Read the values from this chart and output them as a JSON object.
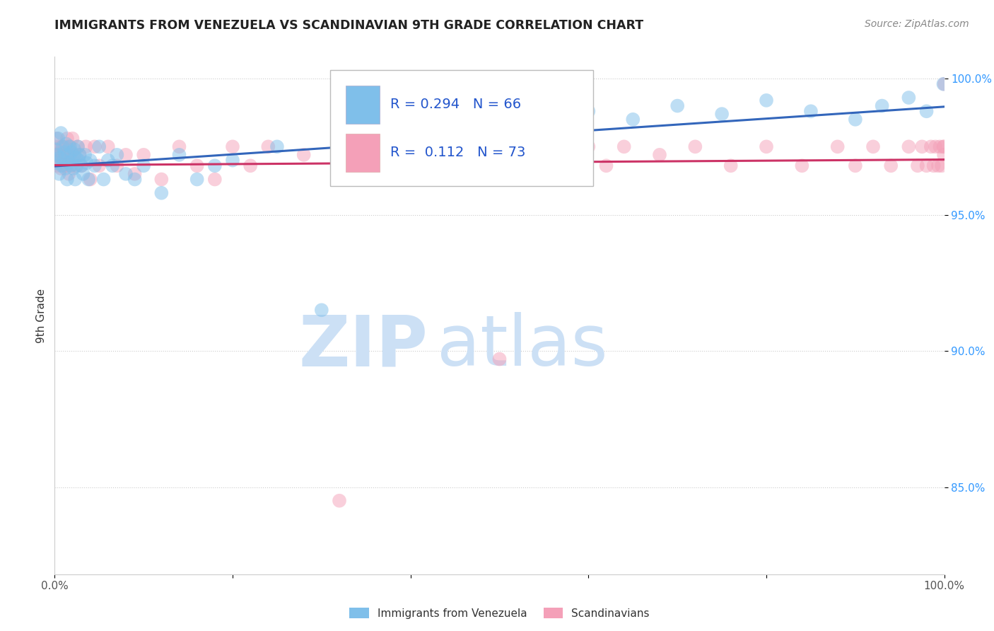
{
  "title": "IMMIGRANTS FROM VENEZUELA VS SCANDINAVIAN 9TH GRADE CORRELATION CHART",
  "source": "Source: ZipAtlas.com",
  "ylabel_label": "9th Grade",
  "y_tick_labels": [
    "100.0%",
    "95.0%",
    "90.0%",
    "85.0%"
  ],
  "y_tick_values": [
    1.0,
    0.95,
    0.9,
    0.85
  ],
  "x_range": [
    0.0,
    1.0
  ],
  "y_range": [
    0.818,
    1.008
  ],
  "blue_label": "Immigrants from Venezuela",
  "pink_label": "Scandinavians",
  "blue_color": "#7fbfea",
  "pink_color": "#f4a0b8",
  "trend_blue_color": "#3366bb",
  "trend_pink_color": "#cc3366",
  "legend_text_color": "#2255cc",
  "watermark_zip": "ZIP",
  "watermark_atlas": "atlas",
  "watermark_color": "#cce0f5",
  "grid_color": "#cccccc",
  "blue_points_x": [
    0.001,
    0.002,
    0.003,
    0.004,
    0.005,
    0.006,
    0.007,
    0.008,
    0.009,
    0.01,
    0.011,
    0.012,
    0.013,
    0.014,
    0.015,
    0.016,
    0.017,
    0.018,
    0.019,
    0.02,
    0.021,
    0.022,
    0.023,
    0.024,
    0.025,
    0.026,
    0.027,
    0.028,
    0.03,
    0.032,
    0.034,
    0.036,
    0.038,
    0.04,
    0.045,
    0.05,
    0.055,
    0.06,
    0.065,
    0.07,
    0.08,
    0.09,
    0.1,
    0.12,
    0.14,
    0.16,
    0.18,
    0.2,
    0.25,
    0.3,
    0.35,
    0.4,
    0.45,
    0.5,
    0.55,
    0.6,
    0.65,
    0.7,
    0.75,
    0.8,
    0.85,
    0.9,
    0.93,
    0.96,
    0.98,
    0.999
  ],
  "blue_points_y": [
    0.974,
    0.969,
    0.972,
    0.978,
    0.965,
    0.971,
    0.98,
    0.968,
    0.975,
    0.97,
    0.973,
    0.967,
    0.976,
    0.963,
    0.972,
    0.969,
    0.975,
    0.968,
    0.973,
    0.97,
    0.967,
    0.974,
    0.963,
    0.971,
    0.968,
    0.975,
    0.97,
    0.972,
    0.968,
    0.965,
    0.972,
    0.969,
    0.963,
    0.97,
    0.968,
    0.975,
    0.963,
    0.97,
    0.968,
    0.972,
    0.965,
    0.963,
    0.968,
    0.958,
    0.972,
    0.963,
    0.968,
    0.97,
    0.975,
    0.915,
    0.972,
    0.968,
    0.975,
    0.983,
    0.97,
    0.988,
    0.985,
    0.99,
    0.987,
    0.992,
    0.988,
    0.985,
    0.99,
    0.993,
    0.988,
    0.998
  ],
  "pink_points_x": [
    0.001,
    0.002,
    0.003,
    0.004,
    0.005,
    0.006,
    0.007,
    0.008,
    0.009,
    0.01,
    0.011,
    0.012,
    0.013,
    0.014,
    0.015,
    0.016,
    0.017,
    0.018,
    0.019,
    0.02,
    0.022,
    0.024,
    0.026,
    0.028,
    0.03,
    0.035,
    0.04,
    0.045,
    0.05,
    0.06,
    0.07,
    0.08,
    0.09,
    0.1,
    0.12,
    0.14,
    0.16,
    0.18,
    0.2,
    0.22,
    0.24,
    0.28,
    0.32,
    0.36,
    0.5,
    0.56,
    0.58,
    0.6,
    0.62,
    0.64,
    0.68,
    0.72,
    0.76,
    0.8,
    0.84,
    0.88,
    0.9,
    0.92,
    0.94,
    0.96,
    0.97,
    0.975,
    0.98,
    0.985,
    0.988,
    0.99,
    0.993,
    0.995,
    0.997,
    0.999,
    0.9995,
    0.9998,
    1.0
  ],
  "pink_points_y": [
    0.972,
    0.978,
    0.968,
    0.975,
    0.97,
    0.973,
    0.967,
    0.975,
    0.972,
    0.968,
    0.975,
    0.972,
    0.968,
    0.978,
    0.97,
    0.965,
    0.975,
    0.972,
    0.968,
    0.978,
    0.972,
    0.968,
    0.975,
    0.972,
    0.968,
    0.975,
    0.963,
    0.975,
    0.968,
    0.975,
    0.968,
    0.972,
    0.965,
    0.972,
    0.963,
    0.975,
    0.968,
    0.963,
    0.975,
    0.968,
    0.975,
    0.972,
    0.845,
    0.968,
    0.897,
    0.975,
    0.968,
    0.975,
    0.968,
    0.975,
    0.972,
    0.975,
    0.968,
    0.975,
    0.968,
    0.975,
    0.968,
    0.975,
    0.968,
    0.975,
    0.968,
    0.975,
    0.968,
    0.975,
    0.968,
    0.975,
    0.968,
    0.975,
    0.968,
    0.975,
    0.972,
    0.975,
    0.998
  ]
}
